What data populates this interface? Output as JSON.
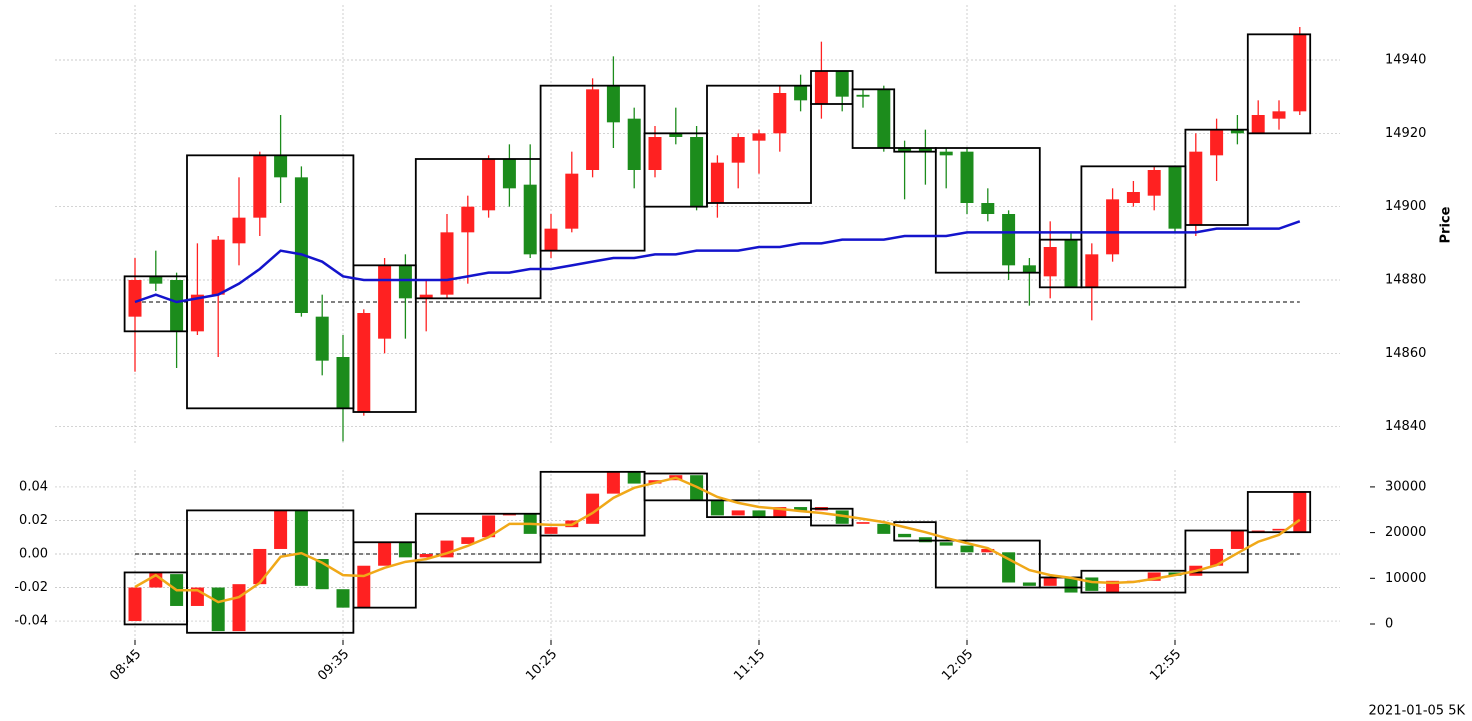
{
  "chart_data": [
    {
      "type": "candlestick",
      "ylabel": "Price",
      "yaxis_side": "right",
      "up_color": "#ff2121",
      "down_color": "#1c8c1c",
      "grid": true,
      "ylim": [
        14835,
        14955
      ],
      "yticks": [
        14840,
        14860,
        14880,
        14900,
        14920,
        14940
      ],
      "open": [
        14870,
        14881,
        14880,
        14866,
        14876,
        14890,
        14897,
        14914,
        14908,
        14870,
        14859,
        14844,
        14864,
        14884,
        14875,
        14876,
        14893,
        14899,
        14913,
        14906,
        14888,
        14894,
        14910,
        14933,
        14924,
        14910,
        14920,
        14919,
        14901,
        14912,
        14918,
        14920,
        14933,
        14928,
        14937,
        14930.5,
        14932,
        14916,
        14916,
        14915,
        14915,
        14901,
        14898,
        14884,
        14881,
        14891,
        14878,
        14887,
        14901,
        14903,
        14911,
        14895,
        14914,
        14921,
        14920,
        14924,
        14926
      ],
      "high": [
        14886,
        14888,
        14882,
        14890,
        14892,
        14908,
        14915,
        14925,
        14911,
        14876,
        14865,
        14872,
        14886,
        14887,
        14880,
        14898,
        14903,
        14914,
        14917,
        14917,
        14898,
        14915,
        14935,
        14941,
        14927,
        14922,
        14927,
        14922,
        14914,
        14920,
        14921,
        14933,
        14936,
        14945,
        14937,
        14932,
        14933,
        14918,
        14921,
        14916,
        14916,
        14905,
        14899,
        14886,
        14896,
        14893,
        14890,
        14905,
        14907,
        14911,
        14911,
        14920,
        14924,
        14925,
        14929,
        14929,
        14949
      ],
      "low": [
        14855,
        14877,
        14856,
        14865,
        14859,
        14884,
        14892,
        14901,
        14870,
        14854,
        14836,
        14843,
        14860,
        14864,
        14866,
        14875,
        14879,
        14897,
        14900,
        14886,
        14886,
        14893,
        14908,
        14916,
        14905,
        14908,
        14917,
        14899,
        14897,
        14905,
        14909,
        14915,
        14926,
        14924,
        14926,
        14927,
        14915,
        14902,
        14906,
        14905,
        14898,
        14896,
        14880,
        14873,
        14875,
        14878,
        14869,
        14885,
        14900,
        14899,
        14893,
        14892,
        14907,
        14917,
        14920,
        14921,
        14925
      ],
      "close": [
        14880,
        14879,
        14866,
        14876,
        14891,
        14897,
        14914,
        14908,
        14871,
        14858,
        14845,
        14871,
        14884,
        14875,
        14876,
        14893,
        14900,
        14913,
        14905,
        14887,
        14894,
        14909,
        14932,
        14923,
        14910,
        14919,
        14919,
        14900,
        14912,
        14919,
        14920,
        14931,
        14929,
        14937,
        14930,
        14930,
        14916,
        14915,
        14915,
        14914,
        14901,
        14898,
        14884,
        14882,
        14889,
        14878,
        14887,
        14902,
        14904,
        14910,
        14894,
        14915,
        14921,
        14920,
        14925,
        14926,
        14947
      ],
      "series": [
        {
          "color": "#1414cc",
          "values": [
            14874,
            14876,
            14874,
            14875,
            14876,
            14879,
            14883,
            14888,
            14887,
            14885,
            14881,
            14880,
            14880,
            14880,
            14880,
            14880,
            14881,
            14882,
            14882,
            14883,
            14883,
            14884,
            14885,
            14886,
            14886,
            14887,
            14887,
            14888,
            14888,
            14888,
            14889,
            14889,
            14890,
            14890,
            14891,
            14891,
            14891,
            14892,
            14892,
            14892,
            14893,
            14893,
            14893,
            14893,
            14893,
            14893,
            14893,
            14893,
            14893,
            14893,
            14893,
            14893,
            14894,
            14894,
            14894,
            14894,
            14896
          ]
        }
      ],
      "hline": 14874,
      "boxes": [
        {
          "start": 0,
          "end": 2,
          "low": 14866,
          "high": 14881
        },
        {
          "start": 3,
          "end": 10,
          "low": 14845,
          "high": 14914
        },
        {
          "start": 11,
          "end": 13,
          "low": 14844,
          "high": 14884
        },
        {
          "start": 14,
          "end": 19,
          "low": 14875,
          "high": 14913
        },
        {
          "start": 20,
          "end": 24,
          "low": 14888,
          "high": 14933
        },
        {
          "start": 25,
          "end": 27,
          "low": 14900,
          "high": 14920
        },
        {
          "start": 28,
          "end": 32,
          "low": 14901,
          "high": 14933
        },
        {
          "start": 33,
          "end": 34,
          "low": 14928,
          "high": 14937
        },
        {
          "start": 35,
          "end": 36,
          "low": 14916,
          "high": 14932
        },
        {
          "start": 37,
          "end": 38,
          "low": 14915,
          "high": 14916
        },
        {
          "start": 39,
          "end": 43,
          "low": 14882,
          "high": 14916
        },
        {
          "start": 44,
          "end": 45,
          "low": 14878,
          "high": 14891
        },
        {
          "start": 46,
          "end": 50,
          "low": 14878,
          "high": 14911
        },
        {
          "start": 51,
          "end": 53,
          "low": 14895,
          "high": 14921
        },
        {
          "start": 54,
          "end": 56,
          "low": 14920,
          "high": 14947
        }
      ]
    },
    {
      "type": "candlestick",
      "yaxis_side": "left",
      "up_color": "#ff2121",
      "down_color": "#1c8c1c",
      "grid": true,
      "categories": [
        "08:45",
        null,
        null,
        null,
        null,
        null,
        null,
        null,
        null,
        null,
        "09:35",
        null,
        null,
        null,
        null,
        null,
        null,
        null,
        null,
        null,
        "10:25",
        null,
        null,
        null,
        null,
        null,
        null,
        null,
        null,
        null,
        "11:15",
        null,
        null,
        null,
        null,
        null,
        null,
        null,
        null,
        null,
        "12:05",
        null,
        null,
        null,
        null,
        null,
        null,
        null,
        null,
        null,
        "12:55",
        null,
        null,
        null,
        null,
        null,
        null
      ],
      "ylim": [
        -0.0513,
        0.0501
      ],
      "yticks": [
        -0.04,
        -0.02,
        {
          "value": 0,
          "label": "0.00"
        },
        0.02,
        0.04
      ],
      "y2lim": [
        -3500,
        33700
      ],
      "y2ticks": [
        0,
        10000,
        20000,
        30000
      ],
      "open": [
        -0.04,
        -0.02,
        -0.012,
        -0.031,
        -0.02,
        -0.046,
        -0.018,
        0.003,
        0.026,
        -0.003,
        -0.021,
        -0.032,
        -0.007,
        0.007,
        -0.002,
        -0.002,
        0.006,
        0.01,
        0.023,
        0.024,
        0.012,
        0.016,
        0.018,
        0.036,
        0.049,
        0.042,
        0.044,
        0.047,
        0.032,
        0.023,
        0.026,
        0.022,
        0.028,
        0.026,
        0.026,
        0.018,
        0.018,
        0.012,
        0.01,
        0.007,
        0.005,
        0.001,
        0.001,
        -0.017,
        -0.019,
        -0.014,
        -0.014,
        -0.023,
        -0.017,
        -0.016,
        -0.011,
        -0.013,
        -0.007,
        0.003,
        0.013,
        0.014,
        0.013
      ],
      "close": [
        -0.02,
        -0.011,
        -0.031,
        -0.02,
        -0.046,
        -0.018,
        0.003,
        0.026,
        -0.019,
        -0.021,
        -0.032,
        -0.007,
        0.007,
        -0.002,
        0.0,
        0.008,
        0.01,
        0.023,
        0.024,
        0.012,
        0.016,
        0.02,
        0.036,
        0.049,
        0.042,
        0.044,
        0.047,
        0.032,
        0.023,
        0.026,
        0.022,
        0.028,
        0.026,
        0.028,
        0.018,
        0.019,
        0.012,
        0.01,
        0.007,
        0.005,
        0.001,
        0.003,
        -0.017,
        -0.019,
        -0.014,
        -0.023,
        -0.022,
        -0.016,
        -0.016,
        -0.011,
        -0.013,
        -0.007,
        0.003,
        0.014,
        0.014,
        0.015,
        0.037
      ],
      "series": [
        {
          "color": "#f0a818",
          "axis": "y2",
          "values": [
            8100,
            10700,
            7400,
            7400,
            4800,
            5900,
            9000,
            14700,
            15500,
            13400,
            10700,
            10500,
            12300,
            13600,
            14200,
            15500,
            17100,
            19000,
            21900,
            21900,
            21700,
            21700,
            24300,
            27600,
            29800,
            30900,
            32000,
            30000,
            27800,
            26500,
            25600,
            25200,
            24700,
            24300,
            23700,
            23000,
            22300,
            21200,
            20100,
            18800,
            17700,
            16600,
            14200,
            11800,
            10700,
            10100,
            9200,
            9000,
            9200,
            9900,
            10700,
            11600,
            12900,
            15500,
            18000,
            19500,
            22800
          ]
        }
      ],
      "hline": 0,
      "boxes": [
        {
          "start": 0,
          "end": 2,
          "low": -0.042,
          "high": -0.011
        },
        {
          "start": 3,
          "end": 10,
          "low": -0.047,
          "high": 0.026
        },
        {
          "start": 11,
          "end": 13,
          "low": -0.032,
          "high": 0.007
        },
        {
          "start": 14,
          "end": 19,
          "low": -0.005,
          "high": 0.024
        },
        {
          "start": 20,
          "end": 24,
          "low": 0.011,
          "high": 0.049
        },
        {
          "start": 25,
          "end": 27,
          "low": 0.032,
          "high": 0.048
        },
        {
          "start": 28,
          "end": 32,
          "low": 0.022,
          "high": 0.032
        },
        {
          "start": 33,
          "end": 34,
          "low": 0.017,
          "high": 0.027
        },
        {
          "start": 37,
          "end": 38,
          "low": 0.008,
          "high": 0.019
        },
        {
          "start": 39,
          "end": 43,
          "low": -0.02,
          "high": 0.008
        },
        {
          "start": 44,
          "end": 45,
          "low": -0.02,
          "high": -0.014
        },
        {
          "start": 46,
          "end": 50,
          "low": -0.023,
          "high": -0.01
        },
        {
          "start": 51,
          "end": 53,
          "low": -0.011,
          "high": 0.014
        },
        {
          "start": 54,
          "end": 56,
          "low": 0.013,
          "high": 0.037
        }
      ]
    }
  ],
  "footnote": "2021-01-05 5K"
}
